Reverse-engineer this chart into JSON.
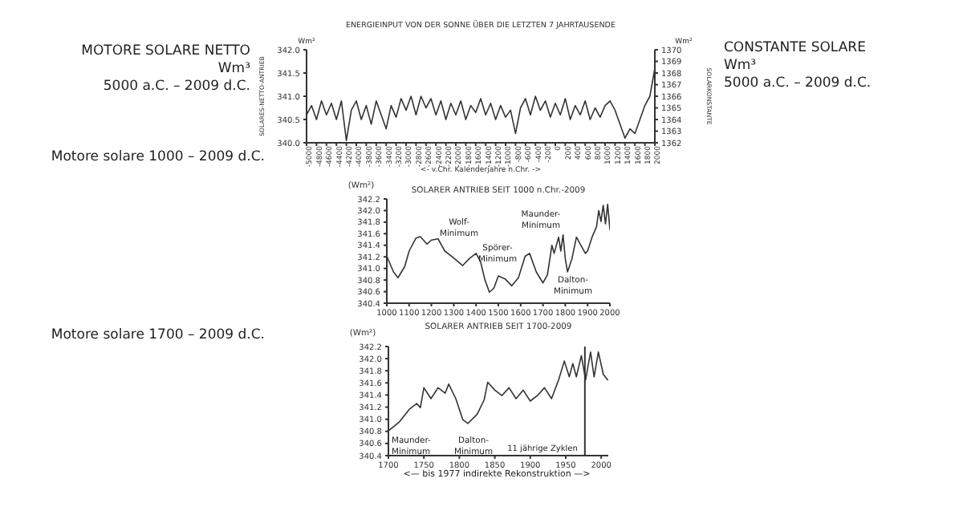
{
  "chart_data": [
    {
      "type": "line",
      "title": "ENERGIEINPUT VON DER SONNE ÜBER DIE LETZTEN 7 JAHRTAUSENDE",
      "xlabel": "<- v.Chr. Kalenderjahre n.Chr. ->",
      "ylabel": "SOLARES-NETTO-ANTRIEB",
      "y2label": "SOLARKONSTANTE",
      "annotations": [
        "MOTORE SOLARE NETTO\nWm³\n5000 a.C. – 2009 d.C.",
        "CONSTANTE SOLARE\nWm³\n5000 a.C. – 2009 d.C.",
        "Wm²",
        "Wm²"
      ],
      "x": [
        -5000,
        -4900,
        -4800,
        -4700,
        -4600,
        -4500,
        -4400,
        -4300,
        -4200,
        -4100,
        -4000,
        -3900,
        -3800,
        -3700,
        -3600,
        -3500,
        -3400,
        -3300,
        -3200,
        -3100,
        -3000,
        -2900,
        -2800,
        -2700,
        -2600,
        -2500,
        -2400,
        -2300,
        -2200,
        -2100,
        -2000,
        -1900,
        -1800,
        -1700,
        -1600,
        -1500,
        -1400,
        -1300,
        -1200,
        -1100,
        -1000,
        -900,
        -800,
        -700,
        -600,
        -500,
        -400,
        -300,
        -200,
        -100,
        0,
        100,
        200,
        300,
        400,
        500,
        600,
        700,
        800,
        900,
        1000,
        1100,
        1200,
        1300,
        1400,
        1500,
        1600,
        1700,
        1800,
        1900,
        2000
      ],
      "series": [
        {
          "color": "#333333",
          "values": [
            340.6,
            340.8,
            340.5,
            340.9,
            340.6,
            340.85,
            340.5,
            340.9,
            340.05,
            340.7,
            340.9,
            340.5,
            340.8,
            340.4,
            340.9,
            340.6,
            340.3,
            340.8,
            340.55,
            340.95,
            340.7,
            341.0,
            340.6,
            341.0,
            340.75,
            340.95,
            340.6,
            340.9,
            340.5,
            340.85,
            340.6,
            340.9,
            340.5,
            340.8,
            340.65,
            340.95,
            340.6,
            340.85,
            340.5,
            340.8,
            340.55,
            340.7,
            340.2,
            340.75,
            340.95,
            340.6,
            341.0,
            340.7,
            340.9,
            340.55,
            340.85,
            340.6,
            340.95,
            340.5,
            340.8,
            340.6,
            340.9,
            340.5,
            340.75,
            340.55,
            340.8,
            340.9,
            340.7,
            340.4,
            340.1,
            340.3,
            340.2,
            340.5,
            340.8,
            341.0,
            341.6
          ]
        }
      ],
      "xlim": [
        -5000,
        2000
      ],
      "xticks": [
        -5000,
        -4800,
        -4600,
        -4400,
        -4200,
        -4000,
        -3800,
        -3600,
        -3400,
        -3200,
        -3000,
        -2800,
        -2600,
        -2400,
        -2200,
        -2000,
        -1800,
        -1600,
        -1400,
        -1200,
        -1000,
        -800,
        -600,
        -400,
        -200,
        0,
        200,
        400,
        600,
        800,
        1000,
        1200,
        1400,
        1600,
        1800,
        2000
      ],
      "ylim": [
        340,
        342
      ],
      "yticks": [
        {
          "value": 340,
          "label": "340.0"
        },
        340.5,
        {
          "value": 341,
          "label": "341.0"
        },
        341.5,
        {
          "value": 342,
          "label": "342.0"
        }
      ],
      "y2lim": [
        1362,
        1370
      ],
      "y2ticks": [
        1362,
        1363,
        1364,
        1365,
        1366,
        1367,
        1368,
        1369,
        1370
      ],
      "grid": false,
      "legend": false
    },
    {
      "type": "line",
      "title": "SOLARER ANTRIEB SEIT 1000 n.Chr.-2009",
      "ylabel": "(Wm²)",
      "annotations": [
        "Motore solare 1000 – 2009 d.C.",
        "Wolf-Minimum",
        "Spörer-Minimum",
        "Maunder-Minimum",
        "Dalton-Minimum"
      ],
      "x": [
        1000,
        1030,
        1050,
        1080,
        1100,
        1130,
        1150,
        1180,
        1200,
        1230,
        1260,
        1300,
        1340,
        1370,
        1400,
        1420,
        1440,
        1460,
        1480,
        1500,
        1530,
        1560,
        1590,
        1620,
        1640,
        1670,
        1700,
        1720,
        1740,
        1750,
        1770,
        1780,
        1790,
        1800,
        1810,
        1830,
        1850,
        1870,
        1890,
        1900,
        1920,
        1940,
        1950,
        1960,
        1970,
        1980,
        1990,
        2000
      ],
      "series": [
        {
          "color": "#333333",
          "values": [
            341.21,
            340.94,
            340.84,
            341.03,
            341.3,
            341.52,
            341.55,
            341.42,
            341.49,
            341.51,
            341.3,
            341.18,
            341.05,
            341.17,
            341.26,
            341.12,
            340.8,
            340.59,
            340.66,
            340.87,
            340.82,
            340.7,
            340.84,
            341.21,
            341.26,
            340.94,
            340.75,
            340.89,
            341.4,
            341.26,
            341.54,
            341.3,
            341.58,
            341.17,
            340.94,
            341.17,
            341.54,
            341.4,
            341.26,
            341.3,
            341.54,
            341.72,
            342.0,
            341.81,
            342.09,
            341.77,
            342.11,
            341.67
          ]
        }
      ],
      "xlim": [
        1000,
        2000
      ],
      "xticks": [
        1000,
        1100,
        1200,
        1300,
        1400,
        1500,
        1600,
        1700,
        1800,
        1900,
        2000
      ],
      "ylim": [
        340.4,
        342.2
      ],
      "yticks": [
        340.4,
        340.6,
        340.8,
        {
          "value": 341,
          "label": "341.0"
        },
        341.2,
        341.4,
        341.6,
        341.8,
        {
          "value": 342,
          "label": "342.0"
        },
        342.2
      ],
      "grid": false,
      "legend": false
    },
    {
      "type": "line",
      "title": "SOLARER ANTRIEB SEIT 1700-2009",
      "ylabel": "(Wm²)",
      "annotations": [
        "Motore solare 1700 – 2009 d.C.",
        "<— bis 1977 indirekte Rekonstruktion —>",
        "Maunder-Minimum",
        "Dalton-Minimum",
        "11 jährige Zyklen"
      ],
      "x": [
        1700,
        1715,
        1730,
        1740,
        1745,
        1750,
        1760,
        1770,
        1780,
        1785,
        1795,
        1805,
        1812,
        1825,
        1835,
        1840,
        1850,
        1860,
        1870,
        1880,
        1890,
        1900,
        1910,
        1920,
        1930,
        1940,
        1948,
        1955,
        1960,
        1965,
        1972,
        1978,
        1985,
        1990,
        1996,
        2003,
        2009
      ],
      "series": [
        {
          "color": "#333333",
          "values": [
            340.81,
            340.95,
            341.17,
            341.26,
            341.19,
            341.52,
            341.34,
            341.52,
            341.43,
            341.58,
            341.34,
            340.99,
            340.93,
            341.08,
            341.32,
            341.61,
            341.48,
            341.39,
            341.52,
            341.34,
            341.48,
            341.3,
            341.39,
            341.52,
            341.34,
            341.65,
            341.96,
            341.7,
            341.92,
            341.7,
            342.05,
            341.65,
            342.11,
            341.7,
            342.11,
            341.74,
            341.65
          ]
        }
      ],
      "xlim": [
        1700,
        2010
      ],
      "xticks": [
        1700,
        1750,
        1800,
        1850,
        1900,
        1950,
        2000
      ],
      "ylim": [
        340.4,
        342.2
      ],
      "yticks": [
        340.4,
        340.6,
        340.8,
        {
          "value": 341,
          "label": "341.0"
        },
        341.2,
        341.4,
        341.6,
        341.8,
        {
          "value": 342,
          "label": "342.0"
        },
        342.2
      ],
      "ref_lines": [
        {
          "axis": "x",
          "value": 1977,
          "color": "#333333"
        }
      ],
      "grid": false,
      "legend": false
    }
  ]
}
